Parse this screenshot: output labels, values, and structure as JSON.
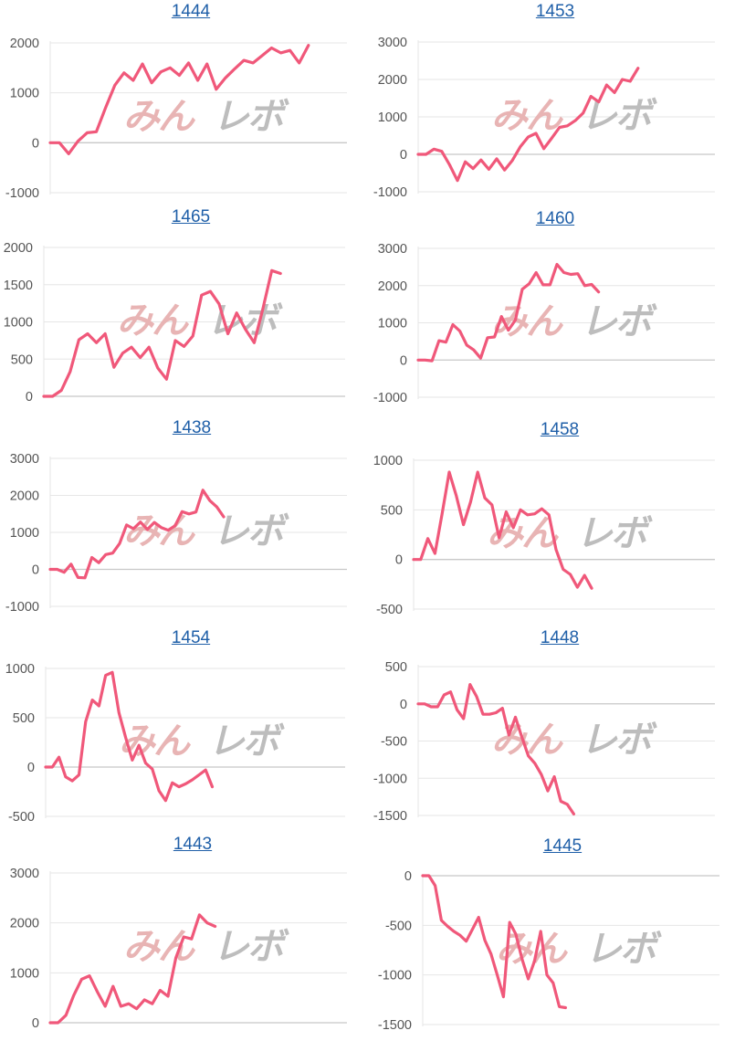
{
  "line_color": "#f0587a",
  "grid_color": "#e6e6e6",
  "zero_line_color": "#c8c8c8",
  "watermark": "みんレボ",
  "chart_data": [
    {
      "type": "line",
      "title": "1444",
      "ylim": [
        -1000,
        2000
      ],
      "ticks": [
        2000,
        1000,
        0,
        -1000
      ],
      "values": [
        0,
        0,
        -220,
        30,
        200,
        220,
        700,
        1150,
        1400,
        1250,
        1580,
        1200,
        1420,
        1500,
        1350,
        1600,
        1250,
        1580,
        1070,
        1300,
        1480,
        1650,
        1600,
        1750,
        1900,
        1800,
        1850,
        1600,
        1950
      ]
    },
    {
      "type": "line",
      "title": "1453",
      "ylim": [
        -1000,
        3000
      ],
      "ticks": [
        3000,
        2000,
        1000,
        0,
        -1000
      ],
      "values": [
        0,
        0,
        140,
        80,
        -280,
        -700,
        -200,
        -380,
        -150,
        -400,
        -120,
        -420,
        -160,
        200,
        460,
        560,
        150,
        430,
        720,
        760,
        900,
        1100,
        1550,
        1400,
        1850,
        1650,
        2000,
        1950,
        2300
      ]
    },
    {
      "type": "line",
      "title": "1465",
      "ylim": [
        0,
        2000
      ],
      "ticks": [
        2000,
        1500,
        1000,
        500,
        0
      ],
      "values": [
        0,
        0,
        80,
        330,
        760,
        840,
        720,
        840,
        390,
        580,
        660,
        520,
        660,
        380,
        230,
        750,
        670,
        810,
        1360,
        1410,
        1240,
        840,
        1120,
        900,
        720,
        1180,
        1690,
        1650
      ]
    },
    {
      "type": "line",
      "title": "1460",
      "ylim": [
        -1000,
        3000
      ],
      "ticks": [
        3000,
        2000,
        1000,
        0,
        -1000
      ],
      "values": [
        0,
        0,
        -20,
        520,
        480,
        950,
        780,
        400,
        270,
        50,
        600,
        620,
        1170,
        800,
        1070,
        1900,
        2050,
        2350,
        2020,
        2020,
        2570,
        2350,
        2300,
        2320,
        2000,
        2030,
        1830
      ]
    },
    {
      "type": "line",
      "title": "1438",
      "ylim": [
        -1000,
        3000
      ],
      "ticks": [
        3000,
        2000,
        1000,
        0,
        -1000
      ],
      "values": [
        0,
        0,
        -80,
        140,
        -220,
        -230,
        320,
        180,
        400,
        440,
        700,
        1200,
        1100,
        1280,
        1080,
        1270,
        1130,
        1060,
        1180,
        1560,
        1500,
        1550,
        2140,
        1860,
        1690,
        1420
      ]
    },
    {
      "type": "line",
      "title": "1458",
      "ylim": [
        -500,
        1000
      ],
      "ticks": [
        1000,
        500,
        0,
        -500
      ],
      "values": [
        0,
        0,
        210,
        60,
        460,
        880,
        640,
        350,
        580,
        880,
        620,
        550,
        220,
        480,
        320,
        500,
        450,
        460,
        510,
        450,
        100,
        -100,
        -150,
        -280,
        -160,
        -290
      ]
    },
    {
      "type": "line",
      "title": "1454",
      "ylim": [
        -500,
        1000
      ],
      "ticks": [
        1000,
        500,
        0,
        -500
      ],
      "values": [
        0,
        0,
        100,
        -100,
        -140,
        -80,
        460,
        680,
        620,
        930,
        960,
        550,
        300,
        70,
        220,
        40,
        -20,
        -240,
        -340,
        -160,
        -200,
        -170,
        -130,
        -80,
        -30,
        -200
      ]
    },
    {
      "type": "line",
      "title": "1448",
      "ylim": [
        -1500,
        500
      ],
      "ticks": [
        500,
        0,
        -500,
        -1000,
        -1500
      ],
      "values": [
        0,
        0,
        -40,
        -40,
        120,
        160,
        -80,
        -200,
        260,
        100,
        -140,
        -140,
        -120,
        -60,
        -420,
        -180,
        -450,
        -700,
        -800,
        -950,
        -1170,
        -980,
        -1310,
        -1350,
        -1480
      ]
    },
    {
      "type": "line",
      "title": "1443",
      "ylim": [
        0,
        3000
      ],
      "ticks": [
        3000,
        2000,
        1000,
        0
      ],
      "values": [
        0,
        0,
        150,
        550,
        870,
        940,
        620,
        330,
        730,
        330,
        380,
        280,
        460,
        380,
        650,
        530,
        1300,
        1720,
        1680,
        2160,
        2000,
        1930
      ]
    },
    {
      "type": "line",
      "title": "1445",
      "ylim": [
        -1500,
        0
      ],
      "ticks": [
        0,
        -500,
        -1000,
        -1500
      ],
      "values": [
        0,
        0,
        -100,
        -450,
        -510,
        -560,
        -600,
        -660,
        -540,
        -420,
        -650,
        -790,
        -1000,
        -1220,
        -470,
        -590,
        -840,
        -1040,
        -860,
        -560,
        -1000,
        -1080,
        -1320,
        -1330
      ]
    }
  ]
}
